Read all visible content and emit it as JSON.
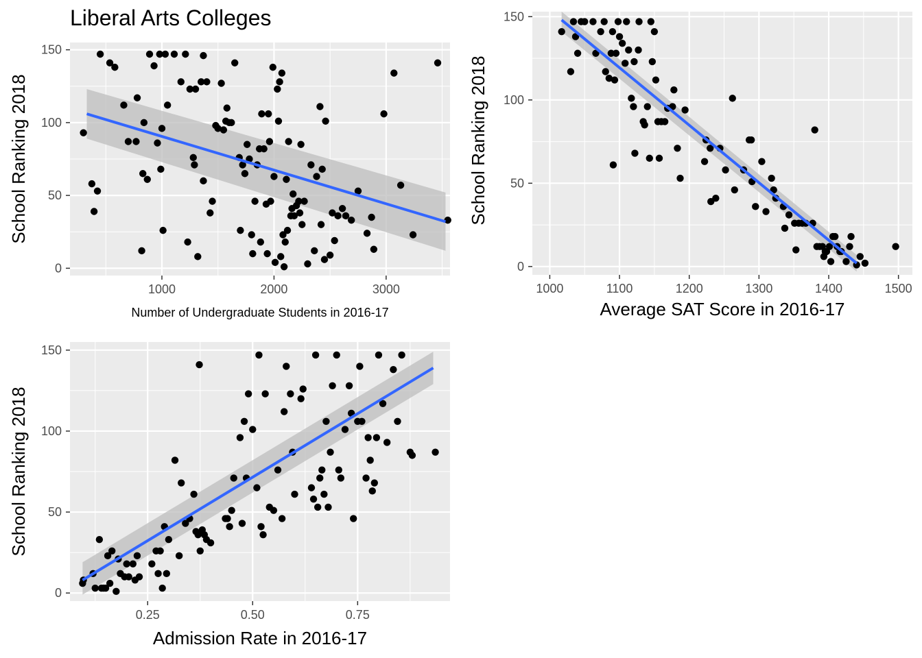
{
  "title": "Liberal Arts Colleges",
  "colors": {
    "panel": "#ebebeb",
    "grid": "#ffffff",
    "point": "#000000",
    "fit": "#3366ff",
    "band": "#bdbdbd",
    "tick_text": "#4d4d4d"
  },
  "chart_data": [
    {
      "type": "scatter",
      "title": "Liberal Arts Colleges",
      "xlabel": "Number of Undergraduate Students in 2016-17",
      "ylabel": "School Ranking 2018",
      "xlim": [
        180,
        3570
      ],
      "ylim": [
        -5,
        155
      ],
      "xticks": [
        1000,
        2000,
        3000
      ],
      "xtick_labels": [
        "1000",
        "2000",
        "3000"
      ],
      "yticks": [
        0,
        50,
        100,
        150
      ],
      "ytick_labels": [
        "0",
        "50",
        "100",
        "150"
      ],
      "grid": true,
      "legend": "none",
      "smooth": {
        "method": "linear",
        "x": [
          330,
          3530
        ],
        "y": [
          106,
          32
        ],
        "ci_upper_at_ends": [
          123,
          52
        ],
        "ci_lower_at_ends": [
          89,
          12
        ]
      },
      "points": [
        [
          300,
          93
        ],
        [
          375,
          58
        ],
        [
          395,
          39
        ],
        [
          425,
          53
        ],
        [
          450,
          147
        ],
        [
          535,
          141
        ],
        [
          580,
          138
        ],
        [
          660,
          112
        ],
        [
          700,
          87
        ],
        [
          770,
          87
        ],
        [
          780,
          117
        ],
        [
          820,
          12
        ],
        [
          830,
          65
        ],
        [
          840,
          100
        ],
        [
          870,
          61
        ],
        [
          890,
          147
        ],
        [
          930,
          139
        ],
        [
          960,
          86
        ],
        [
          980,
          147
        ],
        [
          990,
          68
        ],
        [
          1000,
          96
        ],
        [
          1010,
          26
        ],
        [
          1030,
          147
        ],
        [
          1050,
          112
        ],
        [
          1110,
          147
        ],
        [
          1170,
          128
        ],
        [
          1210,
          147
        ],
        [
          1230,
          18
        ],
        [
          1250,
          123
        ],
        [
          1280,
          76
        ],
        [
          1290,
          71
        ],
        [
          1300,
          123
        ],
        [
          1320,
          8
        ],
        [
          1350,
          128
        ],
        [
          1370,
          146
        ],
        [
          1370,
          60
        ],
        [
          1400,
          128
        ],
        [
          1430,
          38
        ],
        [
          1450,
          46
        ],
        [
          1480,
          98
        ],
        [
          1500,
          96
        ],
        [
          1530,
          127
        ],
        [
          1550,
          95
        ],
        [
          1570,
          101
        ],
        [
          1580,
          110
        ],
        [
          1600,
          100
        ],
        [
          1620,
          100
        ],
        [
          1650,
          141
        ],
        [
          1690,
          76
        ],
        [
          1700,
          26
        ],
        [
          1720,
          71
        ],
        [
          1740,
          65
        ],
        [
          1760,
          85
        ],
        [
          1780,
          75
        ],
        [
          1800,
          23
        ],
        [
          1810,
          10
        ],
        [
          1830,
          46
        ],
        [
          1850,
          71
        ],
        [
          1870,
          82
        ],
        [
          1880,
          18
        ],
        [
          1890,
          106
        ],
        [
          1910,
          82
        ],
        [
          1930,
          44
        ],
        [
          1940,
          10
        ],
        [
          1950,
          106
        ],
        [
          1960,
          87
        ],
        [
          1970,
          46
        ],
        [
          1990,
          138
        ],
        [
          2000,
          63
        ],
        [
          2010,
          4
        ],
        [
          2030,
          123
        ],
        [
          2040,
          101
        ],
        [
          2050,
          128
        ],
        [
          2060,
          8
        ],
        [
          2070,
          134
        ],
        [
          2080,
          23
        ],
        [
          2090,
          1
        ],
        [
          2100,
          18
        ],
        [
          2110,
          61
        ],
        [
          2120,
          26
        ],
        [
          2130,
          87
        ],
        [
          2150,
          36
        ],
        [
          2160,
          41
        ],
        [
          2170,
          51
        ],
        [
          2180,
          36
        ],
        [
          2200,
          43
        ],
        [
          2220,
          46
        ],
        [
          2230,
          38
        ],
        [
          2240,
          85
        ],
        [
          2250,
          30
        ],
        [
          2270,
          46
        ],
        [
          2300,
          3
        ],
        [
          2330,
          71
        ],
        [
          2360,
          12
        ],
        [
          2380,
          63
        ],
        [
          2410,
          111
        ],
        [
          2420,
          30
        ],
        [
          2430,
          68
        ],
        [
          2450,
          6
        ],
        [
          2460,
          101
        ],
        [
          2500,
          9
        ],
        [
          2520,
          38
        ],
        [
          2540,
          19
        ],
        [
          2570,
          36
        ],
        [
          2610,
          41
        ],
        [
          2640,
          36
        ],
        [
          2690,
          33
        ],
        [
          2750,
          53
        ],
        [
          2830,
          24
        ],
        [
          2870,
          35
        ],
        [
          2890,
          13
        ],
        [
          2980,
          106
        ],
        [
          3070,
          134
        ],
        [
          3130,
          57
        ],
        [
          3240,
          23
        ],
        [
          3460,
          141
        ],
        [
          3550,
          33
        ]
      ]
    },
    {
      "type": "scatter",
      "xlabel": "Average SAT Score in 2016-17",
      "ylabel": "School Ranking 2018",
      "xlim": [
        975,
        1520
      ],
      "ylim": [
        -5,
        153
      ],
      "xticks": [
        1000,
        1100,
        1200,
        1300,
        1400,
        1500
      ],
      "xtick_labels": [
        "1000",
        "1100",
        "1200",
        "1300",
        "1400",
        "1500"
      ],
      "yticks": [
        0,
        50,
        100,
        150
      ],
      "ytick_labels": [
        "0",
        "50",
        "100",
        "150"
      ],
      "grid": true,
      "legend": "none",
      "smooth": {
        "method": "linear",
        "x": [
          1017,
          1440
        ],
        "y": [
          148,
          2
        ],
        "ci_upper_at_ends": [
          153,
          7
        ],
        "ci_lower_at_ends": [
          141,
          -3
        ]
      },
      "points": [
        [
          1017,
          141
        ],
        [
          1030,
          117
        ],
        [
          1034,
          147
        ],
        [
          1037,
          138
        ],
        [
          1040,
          128
        ],
        [
          1045,
          147
        ],
        [
          1050,
          147
        ],
        [
          1062,
          147
        ],
        [
          1066,
          128
        ],
        [
          1073,
          141
        ],
        [
          1078,
          147
        ],
        [
          1080,
          117
        ],
        [
          1085,
          113
        ],
        [
          1088,
          128
        ],
        [
          1090,
          141
        ],
        [
          1091,
          61
        ],
        [
          1093,
          112
        ],
        [
          1095,
          128
        ],
        [
          1098,
          147
        ],
        [
          1100,
          138
        ],
        [
          1104,
          134
        ],
        [
          1108,
          122
        ],
        [
          1110,
          147
        ],
        [
          1113,
          130
        ],
        [
          1117,
          101
        ],
        [
          1120,
          96
        ],
        [
          1121,
          123
        ],
        [
          1122,
          68
        ],
        [
          1127,
          130
        ],
        [
          1128,
          147
        ],
        [
          1134,
          87
        ],
        [
          1136,
          85
        ],
        [
          1140,
          96
        ],
        [
          1143,
          65
        ],
        [
          1145,
          147
        ],
        [
          1147,
          123
        ],
        [
          1150,
          141
        ],
        [
          1152,
          112
        ],
        [
          1155,
          87
        ],
        [
          1157,
          65
        ],
        [
          1160,
          87
        ],
        [
          1165,
          87
        ],
        [
          1169,
          95
        ],
        [
          1176,
          96
        ],
        [
          1178,
          106
        ],
        [
          1183,
          71
        ],
        [
          1187,
          53
        ],
        [
          1194,
          94
        ],
        [
          1222,
          63
        ],
        [
          1224,
          76
        ],
        [
          1230,
          71
        ],
        [
          1231,
          39
        ],
        [
          1238,
          41
        ],
        [
          1244,
          71
        ],
        [
          1252,
          58
        ],
        [
          1262,
          101
        ],
        [
          1265,
          46
        ],
        [
          1278,
          58
        ],
        [
          1286,
          76
        ],
        [
          1289,
          76
        ],
        [
          1290,
          51
        ],
        [
          1295,
          36
        ],
        [
          1304,
          63
        ],
        [
          1310,
          33
        ],
        [
          1318,
          53
        ],
        [
          1321,
          46
        ],
        [
          1324,
          41
        ],
        [
          1335,
          36
        ],
        [
          1337,
          23
        ],
        [
          1343,
          31
        ],
        [
          1351,
          26
        ],
        [
          1353,
          10
        ],
        [
          1357,
          26
        ],
        [
          1362,
          26
        ],
        [
          1367,
          26
        ],
        [
          1377,
          26
        ],
        [
          1380,
          82
        ],
        [
          1383,
          12
        ],
        [
          1387,
          12
        ],
        [
          1391,
          12
        ],
        [
          1393,
          6
        ],
        [
          1395,
          9
        ],
        [
          1397,
          9
        ],
        [
          1401,
          12
        ],
        [
          1403,
          3
        ],
        [
          1406,
          18
        ],
        [
          1409,
          18
        ],
        [
          1412,
          12
        ],
        [
          1416,
          9
        ],
        [
          1418,
          9
        ],
        [
          1425,
          3
        ],
        [
          1430,
          12
        ],
        [
          1432,
          18
        ],
        [
          1440,
          1
        ],
        [
          1445,
          6
        ],
        [
          1452,
          2
        ],
        [
          1496,
          12
        ]
      ]
    },
    {
      "type": "scatter",
      "xlabel": "Admission Rate in 2016-17",
      "ylabel": "School Ranking 2018",
      "xlim": [
        0.065,
        0.97
      ],
      "ylim": [
        -5,
        155
      ],
      "xticks": [
        0.25,
        0.5,
        0.75
      ],
      "xtick_labels": [
        "0.25",
        "0.50",
        "0.75"
      ],
      "yticks": [
        0,
        50,
        100,
        150
      ],
      "ytick_labels": [
        "0",
        "50",
        "100",
        "150"
      ],
      "grid": true,
      "legend": "none",
      "smooth": {
        "method": "linear",
        "x": [
          0.095,
          0.93
        ],
        "y": [
          8,
          139
        ],
        "ci_upper_at_ends": [
          19,
          149
        ],
        "ci_lower_at_ends": [
          -1,
          129
        ]
      },
      "points": [
        [
          0.095,
          6
        ],
        [
          0.097,
          8
        ],
        [
          0.12,
          12
        ],
        [
          0.125,
          3
        ],
        [
          0.135,
          33
        ],
        [
          0.14,
          3
        ],
        [
          0.145,
          3
        ],
        [
          0.15,
          3
        ],
        [
          0.155,
          23
        ],
        [
          0.16,
          6
        ],
        [
          0.165,
          26
        ],
        [
          0.175,
          1
        ],
        [
          0.18,
          21
        ],
        [
          0.185,
          12
        ],
        [
          0.195,
          10
        ],
        [
          0.2,
          18
        ],
        [
          0.205,
          10
        ],
        [
          0.215,
          18
        ],
        [
          0.22,
          8
        ],
        [
          0.225,
          23
        ],
        [
          0.23,
          10
        ],
        [
          0.26,
          18
        ],
        [
          0.27,
          26
        ],
        [
          0.275,
          12
        ],
        [
          0.28,
          26
        ],
        [
          0.285,
          3
        ],
        [
          0.29,
          41
        ],
        [
          0.295,
          12
        ],
        [
          0.3,
          33
        ],
        [
          0.315,
          82
        ],
        [
          0.325,
          23
        ],
        [
          0.33,
          68
        ],
        [
          0.34,
          43
        ],
        [
          0.35,
          46
        ],
        [
          0.36,
          61
        ],
        [
          0.365,
          38
        ],
        [
          0.37,
          36
        ],
        [
          0.373,
          141
        ],
        [
          0.375,
          26
        ],
        [
          0.38,
          39
        ],
        [
          0.385,
          36
        ],
        [
          0.39,
          33
        ],
        [
          0.4,
          31
        ],
        [
          0.435,
          46
        ],
        [
          0.44,
          46
        ],
        [
          0.445,
          41
        ],
        [
          0.45,
          51
        ],
        [
          0.455,
          71
        ],
        [
          0.47,
          96
        ],
        [
          0.475,
          43
        ],
        [
          0.48,
          106
        ],
        [
          0.485,
          71
        ],
        [
          0.49,
          123
        ],
        [
          0.5,
          101
        ],
        [
          0.51,
          65
        ],
        [
          0.515,
          147
        ],
        [
          0.52,
          41
        ],
        [
          0.525,
          36
        ],
        [
          0.53,
          123
        ],
        [
          0.54,
          53
        ],
        [
          0.55,
          51
        ],
        [
          0.56,
          76
        ],
        [
          0.57,
          46
        ],
        [
          0.575,
          112
        ],
        [
          0.58,
          140
        ],
        [
          0.59,
          123
        ],
        [
          0.595,
          87
        ],
        [
          0.6,
          61
        ],
        [
          0.615,
          120
        ],
        [
          0.62,
          126
        ],
        [
          0.64,
          65
        ],
        [
          0.645,
          58
        ],
        [
          0.65,
          147
        ],
        [
          0.655,
          53
        ],
        [
          0.66,
          71
        ],
        [
          0.665,
          76
        ],
        [
          0.67,
          61
        ],
        [
          0.675,
          106
        ],
        [
          0.68,
          53
        ],
        [
          0.685,
          87
        ],
        [
          0.69,
          128
        ],
        [
          0.7,
          147
        ],
        [
          0.705,
          76
        ],
        [
          0.71,
          71
        ],
        [
          0.72,
          101
        ],
        [
          0.73,
          128
        ],
        [
          0.735,
          111
        ],
        [
          0.74,
          46
        ],
        [
          0.75,
          106
        ],
        [
          0.755,
          140
        ],
        [
          0.76,
          106
        ],
        [
          0.77,
          71
        ],
        [
          0.775,
          96
        ],
        [
          0.78,
          82
        ],
        [
          0.785,
          63
        ],
        [
          0.79,
          68
        ],
        [
          0.795,
          96
        ],
        [
          0.8,
          147
        ],
        [
          0.81,
          117
        ],
        [
          0.82,
          93
        ],
        [
          0.835,
          138
        ],
        [
          0.845,
          106
        ],
        [
          0.855,
          147
        ],
        [
          0.875,
          87
        ],
        [
          0.88,
          85
        ],
        [
          0.935,
          87
        ]
      ]
    }
  ]
}
